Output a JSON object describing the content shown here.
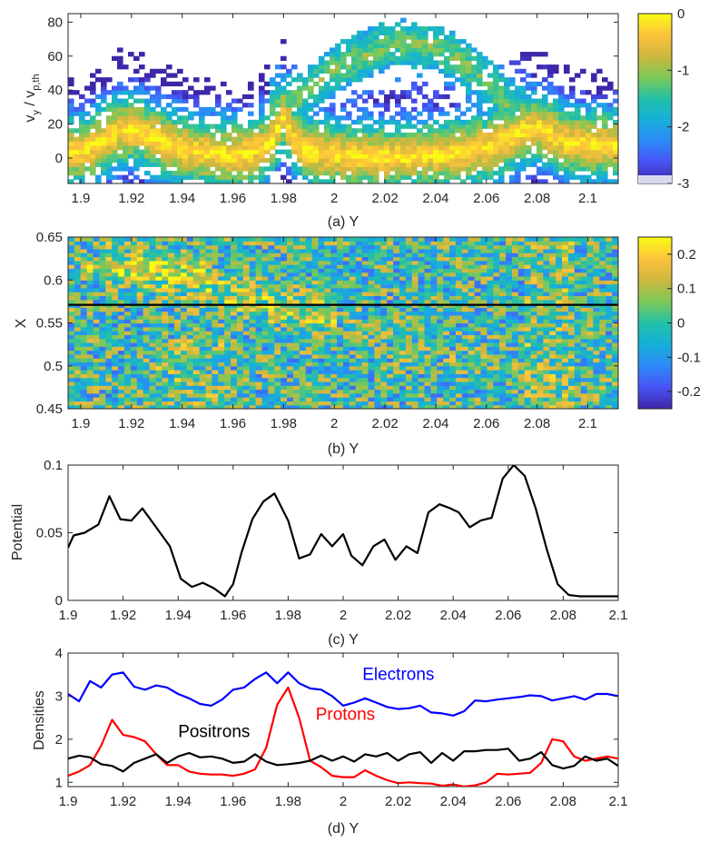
{
  "chart_data": [
    {
      "id": "a",
      "type": "heatmap",
      "xlabel": "(a) Y",
      "ylabel_main": "v",
      "ylabel_sub1": "y",
      "ylabel_mid": " / v",
      "ylabel_sub2": "p,th",
      "xlim": [
        1.895,
        2.112
      ],
      "ylim": [
        -15,
        85
      ],
      "xticks": [
        1.9,
        1.92,
        1.94,
        1.96,
        1.98,
        2.0,
        2.02,
        2.04,
        2.06,
        2.08,
        2.1
      ],
      "xticklabels": [
        "1.9",
        "1.92",
        "1.94",
        "1.96",
        "1.98",
        "2",
        "2.02",
        "2.04",
        "2.06",
        "2.08",
        "2.1"
      ],
      "yticks": [
        0,
        20,
        40,
        60,
        80
      ],
      "yticklabels": [
        "0",
        "20",
        "40",
        "60",
        "80"
      ],
      "colorbar": {
        "min": -3,
        "max": 0,
        "ticks": [
          0,
          -1,
          -2,
          -3
        ],
        "ticklabels": [
          "0",
          "-1",
          "-2",
          "-3"
        ]
      },
      "ridge": {
        "y": [
          1.9,
          1.905,
          1.91,
          1.915,
          1.92,
          1.925,
          1.93,
          1.94,
          1.95,
          1.96,
          1.965,
          1.97,
          1.975,
          1.98,
          1.985,
          1.99,
          2.0,
          2.01,
          2.02,
          2.03,
          2.04,
          2.05,
          2.06,
          2.07,
          2.075,
          2.08,
          2.085,
          2.09,
          2.1,
          2.11
        ],
        "v": [
          4,
          7,
          12,
          16,
          17,
          15,
          11,
          6,
          3,
          2,
          3,
          5,
          9,
          25,
          9,
          4,
          2,
          1,
          1,
          1,
          2,
          3,
          6,
          12,
          17,
          18,
          15,
          10,
          8,
          8
        ]
      },
      "upper_branch": {
        "y": [
          1.98,
          1.99,
          2.0,
          2.01,
          2.02,
          2.03,
          2.04,
          2.05,
          2.06,
          2.07,
          2.08
        ],
        "v": [
          30,
          40,
          52,
          60,
          66,
          68,
          66,
          58,
          45,
          30,
          20
        ]
      }
    },
    {
      "id": "b",
      "type": "heatmap",
      "xlabel": "(b) Y",
      "ylabel": "X",
      "xlim": [
        1.895,
        2.112
      ],
      "ylim": [
        0.45,
        0.65
      ],
      "xticks": [
        1.9,
        1.92,
        1.94,
        1.96,
        1.98,
        2.0,
        2.02,
        2.04,
        2.06,
        2.08,
        2.1
      ],
      "xticklabels": [
        "1.9",
        "1.92",
        "1.94",
        "1.96",
        "1.98",
        "2",
        "2.02",
        "2.04",
        "2.06",
        "2.08",
        "2.1"
      ],
      "yticks": [
        0.45,
        0.5,
        0.55,
        0.6,
        0.65
      ],
      "yticklabels": [
        "0.45",
        "0.5",
        "0.55",
        "0.6",
        "0.65"
      ],
      "hline_x": 0.571,
      "colorbar": {
        "min": -0.25,
        "max": 0.25,
        "ticks": [
          0.2,
          0.1,
          0,
          -0.1,
          -0.2
        ],
        "ticklabels": [
          "0.2",
          "0.1",
          "0",
          "-0.1",
          "-0.2"
        ]
      }
    },
    {
      "id": "c",
      "type": "line",
      "xlabel": "(c) Y",
      "ylabel": "Potential",
      "xlim": [
        1.9,
        2.1
      ],
      "ylim": [
        0,
        0.1
      ],
      "xticks": [
        1.9,
        1.92,
        1.94,
        1.96,
        1.98,
        2.0,
        2.02,
        2.04,
        2.06,
        2.08,
        2.1
      ],
      "xticklabels": [
        "1.9",
        "1.92",
        "1.94",
        "1.96",
        "1.98",
        "2",
        "2.02",
        "2.04",
        "2.06",
        "2.08",
        "2.1"
      ],
      "yticks": [
        0,
        0.05,
        0.1
      ],
      "yticklabels": [
        "0",
        "0.05",
        "0.1"
      ],
      "series": [
        {
          "name": "Potential",
          "color": "#000000",
          "x": [
            1.9,
            1.902,
            1.906,
            1.911,
            1.915,
            1.919,
            1.923,
            1.927,
            1.932,
            1.937,
            1.941,
            1.945,
            1.949,
            1.953,
            1.957,
            1.96,
            1.963,
            1.967,
            1.971,
            1.975,
            1.98,
            1.984,
            1.988,
            1.992,
            1.996,
            2.0,
            2.003,
            2.007,
            2.011,
            2.015,
            2.019,
            2.023,
            2.027,
            2.031,
            2.035,
            2.039,
            2.042,
            2.046,
            2.05,
            2.054,
            2.058,
            2.062,
            2.066,
            2.07,
            2.074,
            2.078,
            2.082,
            2.086,
            2.09,
            2.094,
            2.098,
            2.1
          ],
          "y": [
            0.039,
            0.048,
            0.05,
            0.056,
            0.077,
            0.06,
            0.059,
            0.068,
            0.054,
            0.04,
            0.016,
            0.01,
            0.013,
            0.009,
            0.003,
            0.012,
            0.035,
            0.06,
            0.073,
            0.079,
            0.059,
            0.031,
            0.034,
            0.049,
            0.04,
            0.049,
            0.033,
            0.026,
            0.04,
            0.045,
            0.03,
            0.04,
            0.035,
            0.065,
            0.071,
            0.068,
            0.065,
            0.054,
            0.059,
            0.061,
            0.09,
            0.1,
            0.092,
            0.068,
            0.038,
            0.012,
            0.004,
            0.003,
            0.003,
            0.003,
            0.003,
            0.003
          ]
        }
      ]
    },
    {
      "id": "d",
      "type": "line",
      "xlabel": "(d) Y",
      "ylabel": "Densities",
      "xlim": [
        1.9,
        2.1
      ],
      "ylim": [
        0.9,
        4.0
      ],
      "xticks": [
        1.9,
        1.92,
        1.94,
        1.96,
        1.98,
        2.0,
        2.02,
        2.04,
        2.06,
        2.08,
        2.1
      ],
      "xticklabels": [
        "1.9",
        "1.92",
        "1.94",
        "1.96",
        "1.98",
        "2",
        "2.02",
        "2.04",
        "2.06",
        "2.08",
        "2.1"
      ],
      "yticks": [
        1,
        2,
        3,
        4
      ],
      "yticklabels": [
        "1",
        "2",
        "3",
        "4"
      ],
      "series": [
        {
          "name": "Electrons",
          "color": "#0000ff",
          "x": [
            1.9,
            1.904,
            1.908,
            1.912,
            1.916,
            1.92,
            1.924,
            1.928,
            1.932,
            1.936,
            1.94,
            1.944,
            1.948,
            1.952,
            1.956,
            1.96,
            1.964,
            1.968,
            1.972,
            1.976,
            1.98,
            1.984,
            1.988,
            1.992,
            1.996,
            2.0,
            2.004,
            2.008,
            2.012,
            2.016,
            2.02,
            2.024,
            2.028,
            2.032,
            2.036,
            2.04,
            2.044,
            2.048,
            2.052,
            2.056,
            2.06,
            2.064,
            2.068,
            2.072,
            2.076,
            2.08,
            2.084,
            2.088,
            2.092,
            2.096,
            2.1
          ],
          "y": [
            3.05,
            2.88,
            3.35,
            3.2,
            3.5,
            3.55,
            3.22,
            3.15,
            3.25,
            3.2,
            3.05,
            2.95,
            2.82,
            2.78,
            2.92,
            3.15,
            3.2,
            3.4,
            3.55,
            3.3,
            3.55,
            3.3,
            3.18,
            3.15,
            3.0,
            2.78,
            2.85,
            2.95,
            2.85,
            2.75,
            2.7,
            2.72,
            2.78,
            2.62,
            2.6,
            2.55,
            2.65,
            2.9,
            2.88,
            2.92,
            2.95,
            2.98,
            3.02,
            3.0,
            2.9,
            2.95,
            3.0,
            2.92,
            3.05,
            3.05,
            3.0
          ]
        },
        {
          "name": "Protons",
          "color": "#ff0000",
          "x": [
            1.9,
            1.904,
            1.908,
            1.912,
            1.916,
            1.92,
            1.924,
            1.928,
            1.932,
            1.936,
            1.94,
            1.944,
            1.948,
            1.952,
            1.956,
            1.96,
            1.964,
            1.968,
            1.972,
            1.976,
            1.98,
            1.984,
            1.988,
            1.992,
            1.996,
            2.0,
            2.004,
            2.008,
            2.012,
            2.016,
            2.02,
            2.024,
            2.028,
            2.032,
            2.036,
            2.04,
            2.044,
            2.048,
            2.052,
            2.056,
            2.06,
            2.064,
            2.068,
            2.072,
            2.076,
            2.08,
            2.084,
            2.088,
            2.092,
            2.096,
            2.1
          ],
          "y": [
            1.15,
            1.25,
            1.4,
            1.85,
            2.45,
            2.1,
            2.05,
            1.95,
            1.65,
            1.4,
            1.4,
            1.25,
            1.2,
            1.18,
            1.18,
            1.15,
            1.2,
            1.3,
            1.8,
            2.8,
            3.2,
            2.5,
            1.5,
            1.35,
            1.15,
            1.12,
            1.12,
            1.28,
            1.15,
            1.05,
            0.98,
            1.0,
            0.98,
            0.97,
            0.92,
            0.95,
            0.9,
            0.93,
            1.0,
            1.2,
            1.18,
            1.2,
            1.22,
            1.45,
            2.0,
            1.95,
            1.6,
            1.5,
            1.55,
            1.6,
            1.55
          ]
        },
        {
          "name": "Positrons",
          "color": "#000000",
          "x": [
            1.9,
            1.904,
            1.908,
            1.912,
            1.916,
            1.92,
            1.924,
            1.928,
            1.932,
            1.936,
            1.94,
            1.944,
            1.948,
            1.952,
            1.956,
            1.96,
            1.964,
            1.968,
            1.972,
            1.976,
            1.98,
            1.984,
            1.988,
            1.992,
            1.996,
            2.0,
            2.004,
            2.008,
            2.012,
            2.016,
            2.02,
            2.024,
            2.028,
            2.032,
            2.036,
            2.04,
            2.044,
            2.048,
            2.052,
            2.056,
            2.06,
            2.064,
            2.068,
            2.072,
            2.076,
            2.08,
            2.084,
            2.088,
            2.092,
            2.096,
            2.1
          ],
          "y": [
            1.55,
            1.62,
            1.58,
            1.42,
            1.38,
            1.25,
            1.45,
            1.55,
            1.65,
            1.45,
            1.6,
            1.68,
            1.58,
            1.6,
            1.55,
            1.45,
            1.48,
            1.65,
            1.48,
            1.4,
            1.42,
            1.45,
            1.5,
            1.62,
            1.5,
            1.6,
            1.48,
            1.65,
            1.6,
            1.68,
            1.5,
            1.65,
            1.7,
            1.45,
            1.68,
            1.5,
            1.72,
            1.72,
            1.75,
            1.75,
            1.78,
            1.5,
            1.55,
            1.7,
            1.4,
            1.32,
            1.38,
            1.6,
            1.5,
            1.55,
            1.38
          ]
        }
      ],
      "annotations": [
        {
          "text": "Electrons",
          "color": "#0000ff",
          "x": 2.007,
          "y": 3.38
        },
        {
          "text": "Protons",
          "color": "#ff0000",
          "x": 1.99,
          "y": 2.45
        },
        {
          "text": "Positrons",
          "color": "#000000",
          "x": 1.94,
          "y": 2.05
        }
      ]
    }
  ]
}
